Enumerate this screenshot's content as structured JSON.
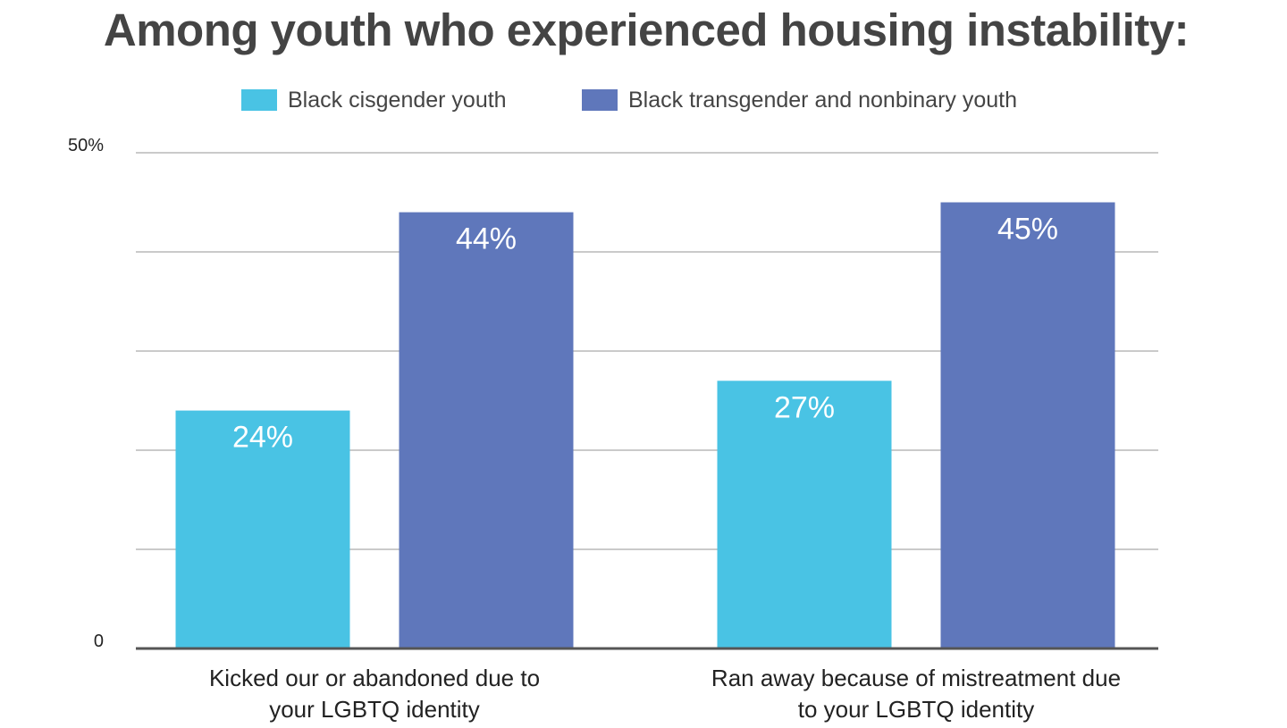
{
  "chart_data": {
    "type": "bar",
    "title": "Among youth who experienced housing instability:",
    "categories": [
      [
        "Kicked our or abandoned due to",
        "your LGBTQ identity"
      ],
      [
        "Ran away because of mistreatment due",
        "to your LGBTQ identity"
      ]
    ],
    "series": [
      {
        "name": "Black cisgender youth",
        "values": [
          24,
          27
        ],
        "value_labels": [
          "24%",
          "27%"
        ],
        "color": "#49C3E4"
      },
      {
        "name": "Black transgender and nonbinary youth",
        "values": [
          44,
          45
        ],
        "value_labels": [
          "44%",
          "45%"
        ],
        "color": "#5F77BB"
      }
    ],
    "ylim": [
      0,
      50
    ],
    "yticks": [
      {
        "value": 0,
        "label": "0"
      },
      {
        "value": 10,
        "label": ""
      },
      {
        "value": 20,
        "label": ""
      },
      {
        "value": 30,
        "label": ""
      },
      {
        "value": 40,
        "label": ""
      },
      {
        "value": 50,
        "label": "50%"
      }
    ],
    "grid": true,
    "legend_position": "top-center",
    "gridline_color": "#AAAAAA",
    "axis_color": "#555555"
  }
}
